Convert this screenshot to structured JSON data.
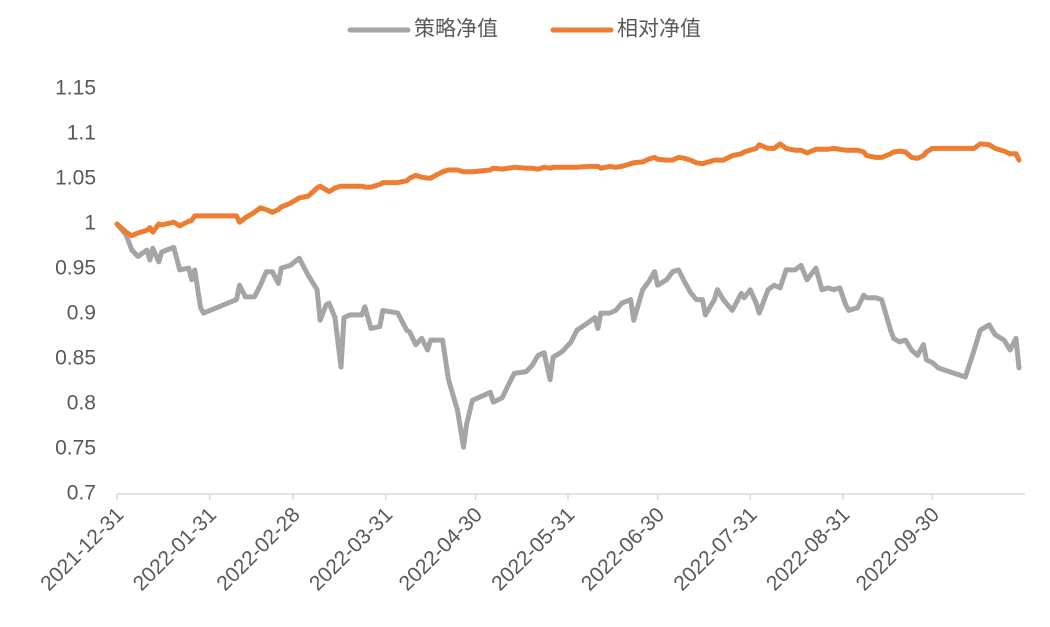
{
  "chart_data": {
    "type": "line",
    "x": [
      "2021-12-31",
      "2022-01-03",
      "2022-01-05",
      "2022-01-07",
      "2022-01-10",
      "2022-01-11",
      "2022-01-12",
      "2022-01-14",
      "2022-01-15",
      "2022-01-19",
      "2022-01-21",
      "2022-01-24",
      "2022-01-25",
      "2022-01-26",
      "2022-01-28",
      "2022-01-29",
      "2022-02-09",
      "2022-02-10",
      "2022-02-12",
      "2022-02-15",
      "2022-02-17",
      "2022-02-19",
      "2022-02-21",
      "2022-02-23",
      "2022-02-24",
      "2022-02-27",
      "2022-03-02",
      "2022-03-05",
      "2022-03-08",
      "2022-03-09",
      "2022-03-11",
      "2022-03-12",
      "2022-03-14",
      "2022-03-16",
      "2022-03-17",
      "2022-03-19",
      "2022-03-23",
      "2022-03-24",
      "2022-03-26",
      "2022-03-29",
      "2022-03-30",
      "2022-04-04",
      "2022-04-07",
      "2022-04-08",
      "2022-04-10",
      "2022-04-12",
      "2022-04-14",
      "2022-04-15",
      "2022-04-19",
      "2022-04-21",
      "2022-04-24",
      "2022-04-26",
      "2022-04-27",
      "2022-04-29",
      "2022-05-05",
      "2022-05-06",
      "2022-05-09",
      "2022-05-11",
      "2022-05-13",
      "2022-05-17",
      "2022-05-19",
      "2022-05-21",
      "2022-05-23",
      "2022-05-25",
      "2022-05-26",
      "2022-05-29",
      "2022-06-01",
      "2022-06-03",
      "2022-06-07",
      "2022-06-09",
      "2022-06-10",
      "2022-06-11",
      "2022-06-14",
      "2022-06-16",
      "2022-06-18",
      "2022-06-21",
      "2022-06-22",
      "2022-06-25",
      "2022-06-27",
      "2022-06-29",
      "2022-06-30",
      "2022-07-03",
      "2022-07-05",
      "2022-07-07",
      "2022-07-09",
      "2022-07-11",
      "2022-07-13",
      "2022-07-15",
      "2022-07-16",
      "2022-07-19",
      "2022-07-20",
      "2022-07-22",
      "2022-07-25",
      "2022-07-28",
      "2022-07-29",
      "2022-07-31",
      "2022-08-02",
      "2022-08-03",
      "2022-08-06",
      "2022-08-08",
      "2022-08-10",
      "2022-08-12",
      "2022-08-15",
      "2022-08-17",
      "2022-08-19",
      "2022-08-22",
      "2022-08-24",
      "2022-08-26",
      "2022-08-28",
      "2022-08-30",
      "2022-09-01",
      "2022-09-02",
      "2022-09-05",
      "2022-09-07",
      "2022-09-08",
      "2022-09-11",
      "2022-09-13",
      "2022-09-16",
      "2022-09-17",
      "2022-09-19",
      "2022-09-21",
      "2022-09-23",
      "2022-09-25",
      "2022-09-27",
      "2022-09-28",
      "2022-09-30",
      "2022-10-02",
      "2022-10-11",
      "2022-10-14",
      "2022-10-16",
      "2022-10-19",
      "2022-10-21",
      "2022-10-24",
      "2022-10-26",
      "2022-10-28",
      "2022-10-29"
    ],
    "series": [
      {
        "name": "策略净值",
        "color": "#a5a5a5",
        "values": [
          1.0,
          0.988,
          0.971,
          0.964,
          0.971,
          0.96,
          0.973,
          0.958,
          0.969,
          0.974,
          0.949,
          0.951,
          0.938,
          0.949,
          0.907,
          0.901,
          0.916,
          0.932,
          0.919,
          0.919,
          0.932,
          0.947,
          0.947,
          0.934,
          0.951,
          0.954,
          0.962,
          0.943,
          0.927,
          0.893,
          0.91,
          0.912,
          0.896,
          0.841,
          0.896,
          0.899,
          0.899,
          0.908,
          0.884,
          0.886,
          0.904,
          0.901,
          0.882,
          0.88,
          0.866,
          0.873,
          0.86,
          0.871,
          0.871,
          0.827,
          0.793,
          0.752,
          0.777,
          0.804,
          0.813,
          0.802,
          0.807,
          0.821,
          0.834,
          0.836,
          0.843,
          0.854,
          0.857,
          0.827,
          0.852,
          0.858,
          0.869,
          0.882,
          0.891,
          0.896,
          0.884,
          0.901,
          0.901,
          0.904,
          0.912,
          0.916,
          0.893,
          0.927,
          0.936,
          0.947,
          0.932,
          0.938,
          0.947,
          0.949,
          0.936,
          0.924,
          0.916,
          0.916,
          0.899,
          0.916,
          0.927,
          0.916,
          0.904,
          0.923,
          0.918,
          0.927,
          0.912,
          0.901,
          0.927,
          0.932,
          0.929,
          0.949,
          0.949,
          0.954,
          0.938,
          0.951,
          0.927,
          0.929,
          0.927,
          0.929,
          0.91,
          0.904,
          0.907,
          0.921,
          0.918,
          0.918,
          0.916,
          0.882,
          0.873,
          0.869,
          0.871,
          0.86,
          0.854,
          0.866,
          0.849,
          0.846,
          0.84,
          0.83,
          0.86,
          0.882,
          0.888,
          0.877,
          0.871,
          0.86,
          0.873,
          0.84
        ]
      },
      {
        "name": "相对净值",
        "color": "#ed7d31",
        "values": [
          1.0,
          0.991,
          0.987,
          0.99,
          0.993,
          0.996,
          0.991,
          1.0,
          0.999,
          1.002,
          0.998,
          1.003,
          1.004,
          1.009,
          1.009,
          1.009,
          1.009,
          1.002,
          1.007,
          1.013,
          1.018,
          1.016,
          1.013,
          1.016,
          1.019,
          1.023,
          1.029,
          1.031,
          1.04,
          1.042,
          1.038,
          1.036,
          1.04,
          1.042,
          1.042,
          1.042,
          1.042,
          1.041,
          1.041,
          1.044,
          1.046,
          1.046,
          1.048,
          1.051,
          1.054,
          1.052,
          1.051,
          1.051,
          1.058,
          1.06,
          1.06,
          1.058,
          1.058,
          1.058,
          1.06,
          1.062,
          1.061,
          1.062,
          1.063,
          1.062,
          1.062,
          1.061,
          1.063,
          1.062,
          1.063,
          1.063,
          1.063,
          1.063,
          1.064,
          1.064,
          1.064,
          1.062,
          1.064,
          1.063,
          1.064,
          1.067,
          1.068,
          1.069,
          1.072,
          1.074,
          1.072,
          1.071,
          1.071,
          1.074,
          1.073,
          1.071,
          1.068,
          1.067,
          1.068,
          1.071,
          1.071,
          1.071,
          1.076,
          1.078,
          1.08,
          1.082,
          1.084,
          1.088,
          1.084,
          1.084,
          1.089,
          1.084,
          1.082,
          1.082,
          1.079,
          1.083,
          1.083,
          1.083,
          1.084,
          1.083,
          1.082,
          1.082,
          1.082,
          1.08,
          1.076,
          1.074,
          1.074,
          1.078,
          1.08,
          1.081,
          1.08,
          1.074,
          1.073,
          1.076,
          1.08,
          1.084,
          1.084,
          1.084,
          1.084,
          1.089,
          1.088,
          1.084,
          1.081,
          1.078,
          1.078,
          1.071
        ]
      }
    ],
    "xlim": [
      "2021-12-31",
      "2022-10-31"
    ],
    "xticks": [
      "2021-12-31",
      "2022-01-31",
      "2022-02-28",
      "2022-03-31",
      "2022-04-30",
      "2022-05-31",
      "2022-06-30",
      "2022-07-31",
      "2022-08-31",
      "2022-09-30"
    ],
    "ylim": [
      0.7,
      1.15
    ],
    "yticks": [
      0.7,
      0.75,
      0.8,
      0.85,
      0.9,
      0.95,
      1,
      1.05,
      1.1,
      1.15
    ],
    "legend": "top"
  }
}
